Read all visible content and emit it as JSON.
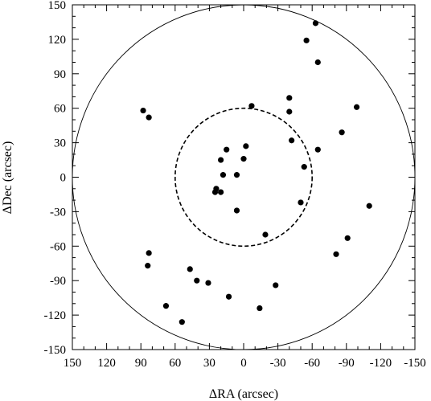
{
  "chart_data": {
    "type": "scatter",
    "title": "",
    "xlabel": "ΔRA (arcsec)",
    "ylabel": "ΔDec (arcsec)",
    "xlim": [
      150,
      -150
    ],
    "ylim": [
      -150,
      150
    ],
    "x_inverted": true,
    "xticks": [
      150,
      120,
      90,
      60,
      30,
      0,
      -30,
      -60,
      -90,
      -120,
      -150
    ],
    "xtick_labels": [
      "150",
      "120",
      "90",
      "60",
      "30",
      "0",
      "-30",
      "-60",
      "-90",
      "-120",
      "-150"
    ],
    "yticks": [
      150,
      120,
      90,
      60,
      30,
      0,
      -30,
      -60,
      -90,
      -120,
      -150
    ],
    "ytick_labels": [
      "150",
      "120",
      "90",
      "60",
      "30",
      "0",
      "-30",
      "-60",
      "-90",
      "-120",
      "-150"
    ],
    "grid": false,
    "circles": [
      {
        "style": "dashed",
        "radius": 60
      },
      {
        "style": "solid",
        "radius": 150
      }
    ],
    "points": [
      {
        "x": -63,
        "y": 134
      },
      {
        "x": -55,
        "y": 119
      },
      {
        "x": -65,
        "y": 100
      },
      {
        "x": -40,
        "y": 69
      },
      {
        "x": -99,
        "y": 61
      },
      {
        "x": -7,
        "y": 62
      },
      {
        "x": 88,
        "y": 58
      },
      {
        "x": 83,
        "y": 52
      },
      {
        "x": -40,
        "y": 57
      },
      {
        "x": -86,
        "y": 39
      },
      {
        "x": -42,
        "y": 32
      },
      {
        "x": -2,
        "y": 27
      },
      {
        "x": -65,
        "y": 24
      },
      {
        "x": 15,
        "y": 24
      },
      {
        "x": 20,
        "y": 15
      },
      {
        "x": 0,
        "y": 16
      },
      {
        "x": -53,
        "y": 9
      },
      {
        "x": 18,
        "y": 2
      },
      {
        "x": 6,
        "y": 2
      },
      {
        "x": 24,
        "y": -10
      },
      {
        "x": 25,
        "y": -13
      },
      {
        "x": 20,
        "y": -13
      },
      {
        "x": -50,
        "y": -22
      },
      {
        "x": 6,
        "y": -29
      },
      {
        "x": -110,
        "y": -25
      },
      {
        "x": -19,
        "y": -50
      },
      {
        "x": -91,
        "y": -53
      },
      {
        "x": -81,
        "y": -67
      },
      {
        "x": 83,
        "y": -66
      },
      {
        "x": 84,
        "y": -77
      },
      {
        "x": 47,
        "y": -80
      },
      {
        "x": 41,
        "y": -90
      },
      {
        "x": 31,
        "y": -92
      },
      {
        "x": -28,
        "y": -94
      },
      {
        "x": 13,
        "y": -104
      },
      {
        "x": -14,
        "y": -114
      },
      {
        "x": 68,
        "y": -112
      },
      {
        "x": 54,
        "y": -126
      }
    ]
  }
}
